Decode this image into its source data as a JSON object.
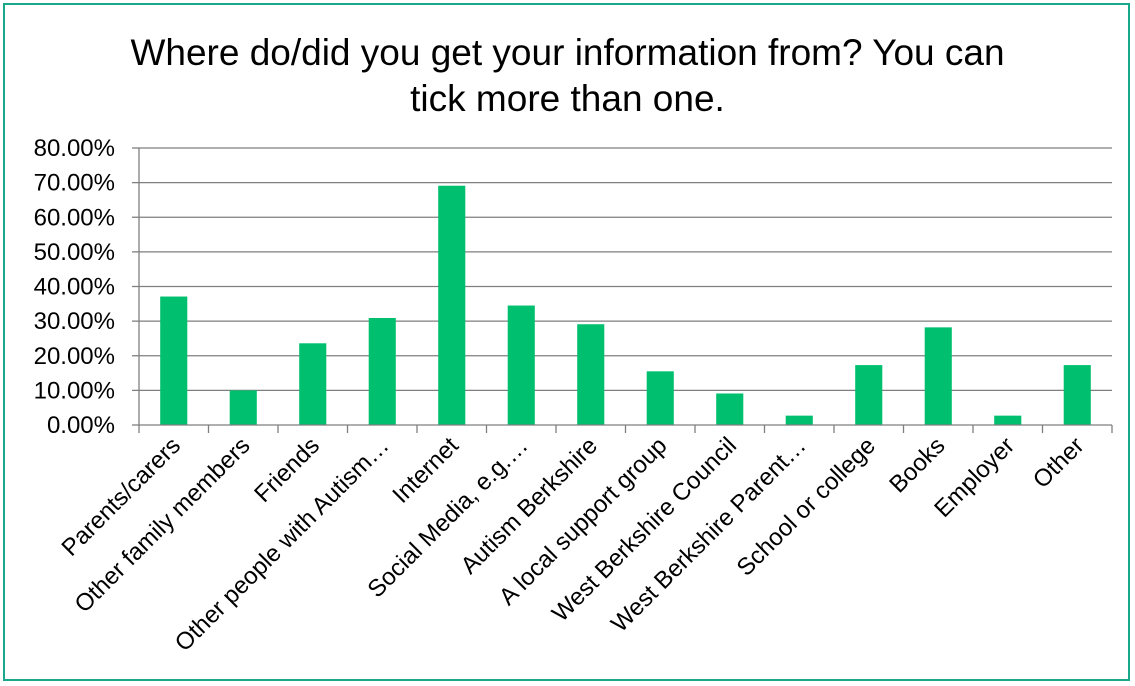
{
  "chart_data": {
    "type": "bar",
    "title_lines": [
      "Where do/did you get your information from? You can",
      "tick more than one."
    ],
    "categories": [
      "Parents/carers",
      "Other family members",
      "Friends",
      "Other people with Autism…",
      "Internet",
      "Social Media, e.g.…",
      "Autism Berkshire",
      "A local support group",
      "West Berkshire Council",
      "West Berkshire Parent…",
      "School or college",
      "Books",
      "Employer",
      "Other"
    ],
    "values": [
      37.1,
      10.0,
      23.6,
      30.9,
      69.1,
      34.5,
      29.1,
      15.5,
      9.1,
      2.7,
      17.3,
      28.2,
      2.7,
      17.3
    ],
    "ylim": [
      0,
      80
    ],
    "ytick_labels": [
      "0.00%",
      "10.00%",
      "20.00%",
      "30.00%",
      "40.00%",
      "50.00%",
      "60.00%",
      "70.00%",
      "80.00%"
    ],
    "grid": true,
    "legend": "none",
    "colors": {
      "bar": "#00bf6f",
      "grid": "#7f7f7f",
      "frame": "#1aa88a"
    }
  }
}
